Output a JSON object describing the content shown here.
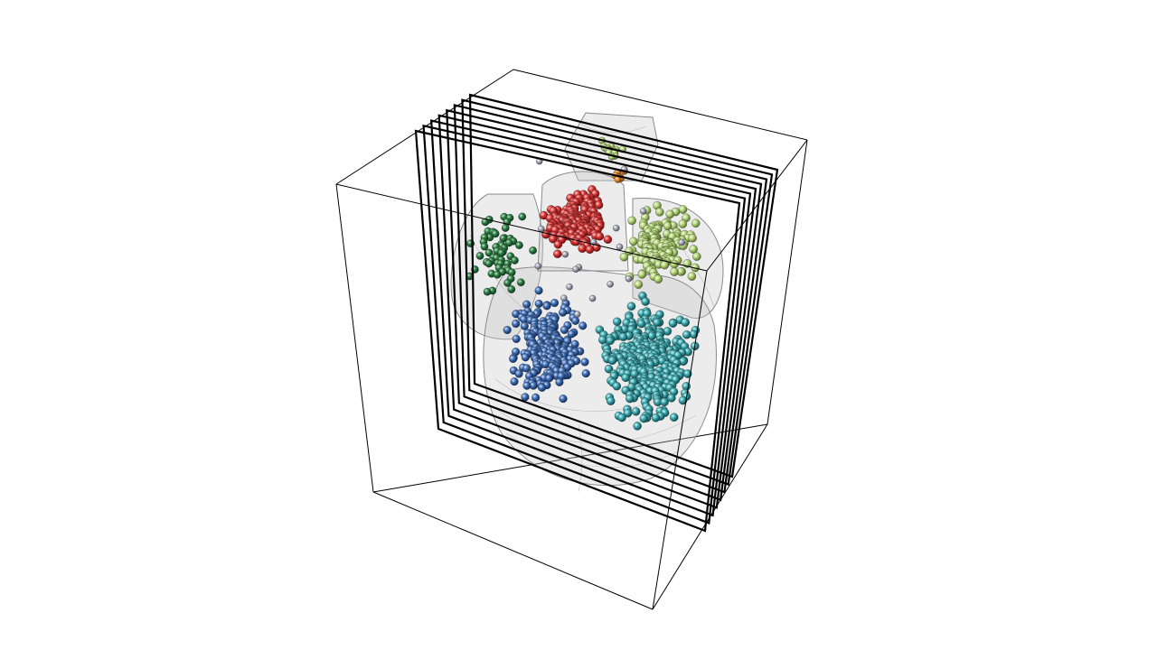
{
  "scene": {
    "background": "#ffffff",
    "bounding_box_color": "#000000",
    "section_plane_count": 8,
    "section_plane_color": "#000000",
    "mesh_fill": "#c8c8c8",
    "mesh_outline": "#8a8a8a",
    "clusters": [
      {
        "name": "dark-green",
        "color": "#2e7d45",
        "count": 60
      },
      {
        "name": "red",
        "color": "#d93434",
        "count": 170
      },
      {
        "name": "light-green",
        "color": "#b5d67c",
        "count": 150
      },
      {
        "name": "blue",
        "color": "#3f6fb6",
        "count": 230
      },
      {
        "name": "teal",
        "color": "#3aa7ad",
        "count": 320
      },
      {
        "name": "orange",
        "color": "#e58a2a",
        "count": 8
      },
      {
        "name": "grey",
        "color": "#a8a8b8",
        "count": 18
      }
    ]
  }
}
